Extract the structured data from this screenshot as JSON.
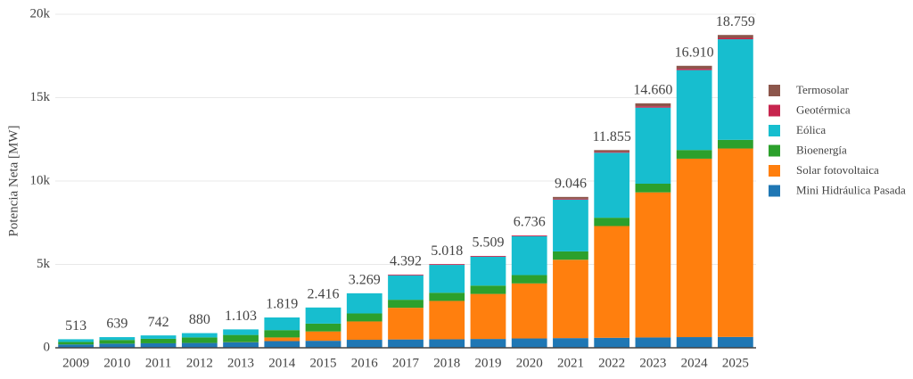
{
  "chart_data": {
    "type": "stacked_bar",
    "y_label": "Potencia Neta [MW]",
    "categories": [
      "2009",
      "2010",
      "2011",
      "2012",
      "2013",
      "2014",
      "2015",
      "2016",
      "2017",
      "2018",
      "2019",
      "2020",
      "2021",
      "2022",
      "2023",
      "2024",
      "2025"
    ],
    "series": [
      {
        "name": "Mini Hidráulica Pasada",
        "color": "#1f77b4",
        "values": [
          200,
          250,
          270,
          290,
          330,
          400,
          420,
          480,
          500,
          510,
          530,
          560,
          580,
          600,
          620,
          640,
          650
        ]
      },
      {
        "name": "Solar fotovoltaica",
        "color": "#ff7f0e",
        "values": [
          0,
          0,
          0,
          2,
          10,
          220,
          560,
          1100,
          1900,
          2300,
          2700,
          3300,
          4700,
          6700,
          8700,
          10700,
          11300
        ]
      },
      {
        "name": "Bioenergía",
        "color": "#2ca02c",
        "values": [
          150,
          220,
          270,
          330,
          430,
          440,
          470,
          480,
          480,
          490,
          500,
          500,
          500,
          500,
          520,
          520,
          520
        ]
      },
      {
        "name": "Eólica",
        "color": "#17becf",
        "values": [
          163,
          169,
          202,
          258,
          333,
          759,
          966,
          1209,
          1464,
          1670,
          1731,
          2328,
          3108,
          3897,
          4562,
          4792,
          6031
        ]
      },
      {
        "name": "Geotérmica",
        "color": "#c7254e",
        "values": [
          0,
          0,
          0,
          0,
          0,
          0,
          0,
          0,
          48,
          48,
          48,
          48,
          48,
          48,
          81,
          81,
          81
        ]
      },
      {
        "name": "Termosolar",
        "color": "#8c564b",
        "values": [
          0,
          0,
          0,
          0,
          0,
          0,
          0,
          0,
          0,
          0,
          0,
          0,
          110,
          110,
          177,
          177,
          177
        ]
      }
    ],
    "totals": {
      "values": [
        513,
        639,
        742,
        880,
        1103,
        1819,
        2416,
        3269,
        4392,
        5018,
        5509,
        6736,
        9046,
        11855,
        14660,
        16910,
        18759
      ],
      "value_labels": [
        "513",
        "639",
        "742",
        "880",
        "1.103",
        "1.819",
        "2.416",
        "3.269",
        "4.392",
        "5.018",
        "5.509",
        "6.736",
        "9.046",
        "11.855",
        "14.660",
        "16.910",
        "18.759"
      ]
    },
    "ylim": [
      0,
      20000
    ],
    "yticks": [
      0,
      {
        "value": 5000,
        "label": "5k"
      },
      {
        "value": 10000,
        "label": "10k"
      },
      {
        "value": 15000,
        "label": "15k"
      },
      {
        "value": 20000,
        "label": "20k"
      }
    ],
    "grid": true
  }
}
